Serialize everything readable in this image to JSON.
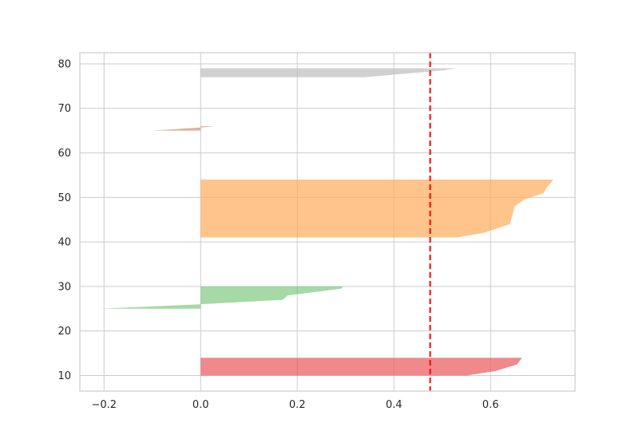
{
  "chart_data": {
    "type": "area",
    "title": "",
    "xlabel": "",
    "ylabel": "",
    "xlim": [
      -0.25,
      0.775
    ],
    "ylim": [
      6.5,
      82.5
    ],
    "x_ticks": [
      -0.2,
      0.0,
      0.2,
      0.4,
      0.6
    ],
    "x_tick_labels": [
      "−0.2",
      "0.0",
      "0.2",
      "0.4",
      "0.6"
    ],
    "y_ticks": [
      10,
      20,
      30,
      40,
      50,
      60,
      70,
      80
    ],
    "y_tick_labels": [
      "10",
      "20",
      "30",
      "40",
      "50",
      "60",
      "70",
      "80"
    ],
    "grid": true,
    "reference_line": {
      "x": 0.475,
      "color": "#ff0000",
      "style": "dashed"
    },
    "clusters": [
      {
        "color": "#e8575a",
        "points": [
          [
            0.0,
            10
          ],
          [
            0.55,
            10
          ],
          [
            0.61,
            11
          ],
          [
            0.655,
            12.5
          ],
          [
            0.665,
            14
          ],
          [
            0.0,
            14
          ]
        ]
      },
      {
        "color": "#7fc97f",
        "points": [
          [
            0.0,
            25
          ],
          [
            -0.21,
            25
          ],
          [
            0.0,
            26
          ],
          [
            0.17,
            27
          ],
          [
            0.18,
            28
          ],
          [
            0.29,
            29.5
          ],
          [
            0.295,
            30
          ],
          [
            0.0,
            30
          ]
        ]
      },
      {
        "color": "#fdab5a",
        "points": [
          [
            0.0,
            41
          ],
          [
            0.53,
            41
          ],
          [
            0.585,
            42
          ],
          [
            0.64,
            44
          ],
          [
            0.645,
            46
          ],
          [
            0.65,
            48
          ],
          [
            0.67,
            49.5
          ],
          [
            0.71,
            51
          ],
          [
            0.715,
            52
          ],
          [
            0.73,
            54
          ],
          [
            0.0,
            54
          ]
        ]
      },
      {
        "color": "#cd9070",
        "points": [
          [
            0.0,
            65
          ],
          [
            -0.1,
            65
          ],
          [
            0.0,
            65.7
          ],
          [
            0.03,
            66
          ],
          [
            0.0,
            66
          ]
        ]
      },
      {
        "color": "#bdbdbd",
        "points": [
          [
            0.0,
            77
          ],
          [
            0.34,
            77
          ],
          [
            0.5,
            78.5
          ],
          [
            0.53,
            79
          ],
          [
            0.0,
            79
          ]
        ]
      }
    ]
  }
}
